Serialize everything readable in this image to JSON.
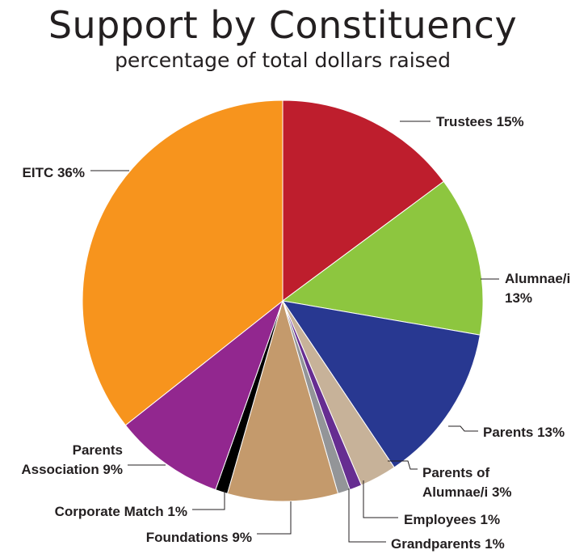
{
  "chart_data": {
    "type": "pie",
    "title": "Support by Constituency",
    "subtitle": "percentage of total dollars raised",
    "legend": "none",
    "slices": [
      {
        "label": "Trustees",
        "value": 15,
        "color": "#be1e2d",
        "text": [
          "Trustees 15%"
        ]
      },
      {
        "label": "Alumnae/i",
        "value": 13,
        "color": "#8dc63f",
        "text": [
          "Alumnae/i",
          "13%"
        ]
      },
      {
        "label": "Parents",
        "value": 13,
        "color": "#283891",
        "text": [
          "Parents 13%"
        ]
      },
      {
        "label": "Parents of Alumnae/i",
        "value": 3,
        "color": "#c7b299",
        "text": [
          "Parents of",
          "Alumnae/i 3%"
        ]
      },
      {
        "label": "Employees",
        "value": 1,
        "color": "#662d91",
        "text": [
          "Employees 1%"
        ]
      },
      {
        "label": "Grandparents",
        "value": 1,
        "color": "#939598",
        "text": [
          "Grandparents 1%"
        ]
      },
      {
        "label": "Foundations",
        "value": 9,
        "color": "#c49a6c",
        "text": [
          "Foundations 9%"
        ]
      },
      {
        "label": "Corporate Match",
        "value": 1,
        "color": "#000000",
        "text": [
          "Corporate Match 1%"
        ]
      },
      {
        "label": "Parents Association",
        "value": 9,
        "color": "#92278f",
        "text": [
          "Parents",
          "Association 9%"
        ]
      },
      {
        "label": "EITC",
        "value": 36,
        "color": "#f7941d",
        "text": [
          "EITC 36%"
        ]
      }
    ]
  }
}
